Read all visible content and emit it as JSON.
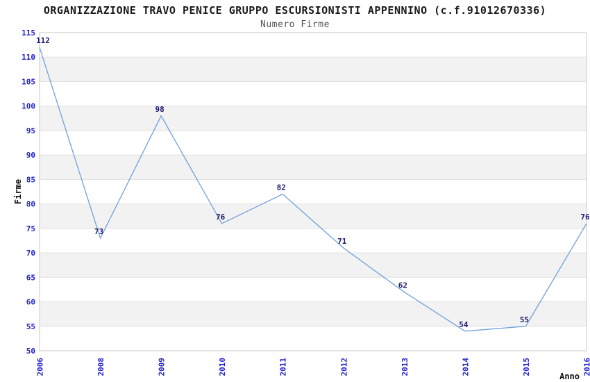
{
  "header": {
    "title": "ORGANIZZAZIONE TRAVO PENICE GRUPPO ESCURSIONISTI APPENNINO (c.f.91012670336)",
    "subtitle": "Numero Firme"
  },
  "chart_data": {
    "type": "line",
    "title": "ORGANIZZAZIONE TRAVO PENICE GRUPPO ESCURSIONISTI APPENNINO (c.f.91012670336)",
    "subtitle": "Numero Firme",
    "categories": [
      "2006",
      "2008",
      "2009",
      "2010",
      "2011",
      "2012",
      "2013",
      "2014",
      "2015",
      "2016"
    ],
    "values": [
      112,
      73,
      98,
      76,
      82,
      71,
      62,
      54,
      55,
      76
    ],
    "xlabel": "Anno",
    "ylabel": "Firme",
    "ylim": [
      50,
      115
    ],
    "ytick_step": 5,
    "legend": "none",
    "grid": "horizontal-alternating-bands",
    "x_tick_rotation": -90,
    "colors": {
      "line": "#6fa0de",
      "band": "#f2f2f2",
      "gridline": "#e0e0e0",
      "plot_border": "#c9c9c9",
      "tick_label": "#2222cc",
      "value_label": "#1b1b6e",
      "title": "#1a1a1a",
      "subtitle": "#555555",
      "axis_label": "#111111",
      "background": "#ffffff"
    }
  }
}
